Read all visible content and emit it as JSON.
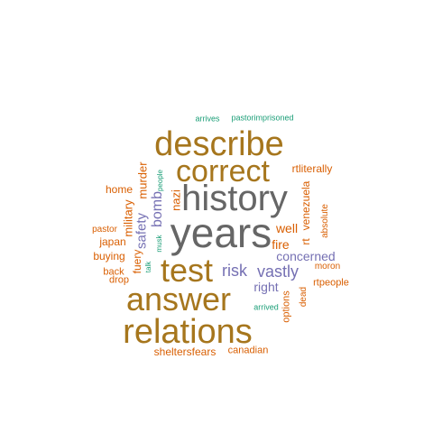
{
  "colors": {
    "background": "#ffffff",
    "gray": "#666666",
    "gold": "#A6761D",
    "orange": "#D95F02",
    "purple": "#7570B3",
    "green": "#1B9E77"
  },
  "words": [
    {
      "text": "years",
      "color": "gray",
      "size": 46
    },
    {
      "text": "history",
      "color": "gray",
      "size": 40
    },
    {
      "text": "describe",
      "color": "gold",
      "size": 38
    },
    {
      "text": "correct",
      "color": "gold",
      "size": 34
    },
    {
      "text": "test",
      "color": "gold",
      "size": 36
    },
    {
      "text": "answer",
      "color": "gold",
      "size": 36
    },
    {
      "text": "relations",
      "color": "gold",
      "size": 38
    },
    {
      "text": "risk",
      "color": "purple",
      "size": 18
    },
    {
      "text": "vastly",
      "color": "purple",
      "size": 18
    },
    {
      "text": "concerned",
      "color": "purple",
      "size": 14
    },
    {
      "text": "right",
      "color": "purple",
      "size": 14
    },
    {
      "text": "bomb",
      "color": "purple",
      "size": 16
    },
    {
      "text": "safety",
      "color": "purple",
      "size": 15
    },
    {
      "text": "arrives",
      "color": "green",
      "size": 9
    },
    {
      "text": "pastorimprisoned",
      "color": "green",
      "size": 9
    },
    {
      "text": "people",
      "color": "green",
      "size": 8
    },
    {
      "text": "musk",
      "color": "green",
      "size": 8
    },
    {
      "text": "talk",
      "color": "green",
      "size": 8
    },
    {
      "text": "arrived",
      "color": "green",
      "size": 9
    },
    {
      "text": "rtliterally",
      "color": "orange",
      "size": 12
    },
    {
      "text": "home",
      "color": "orange",
      "size": 12
    },
    {
      "text": "military",
      "color": "orange",
      "size": 13
    },
    {
      "text": "murder",
      "color": "orange",
      "size": 13
    },
    {
      "text": "nazi",
      "color": "orange",
      "size": 13
    },
    {
      "text": "venezuela",
      "color": "orange",
      "size": 12
    },
    {
      "text": "rt",
      "color": "orange",
      "size": 12
    },
    {
      "text": "absolute",
      "color": "orange",
      "size": 10
    },
    {
      "text": "well",
      "color": "orange",
      "size": 14
    },
    {
      "text": "fire",
      "color": "orange",
      "size": 14
    },
    {
      "text": "pastor",
      "color": "orange",
      "size": 10
    },
    {
      "text": "japan",
      "color": "orange",
      "size": 12
    },
    {
      "text": "buying",
      "color": "orange",
      "size": 12
    },
    {
      "text": "fuery",
      "color": "orange",
      "size": 12
    },
    {
      "text": "back",
      "color": "orange",
      "size": 11
    },
    {
      "text": "drop",
      "color": "orange",
      "size": 11
    },
    {
      "text": "moron",
      "color": "orange",
      "size": 10
    },
    {
      "text": "rtpeople",
      "color": "orange",
      "size": 11
    },
    {
      "text": "dead",
      "color": "orange",
      "size": 10
    },
    {
      "text": "options",
      "color": "orange",
      "size": 11
    },
    {
      "text": "sheltersfears",
      "color": "orange",
      "size": 12
    },
    {
      "text": "canadian",
      "color": "orange",
      "size": 11
    }
  ]
}
